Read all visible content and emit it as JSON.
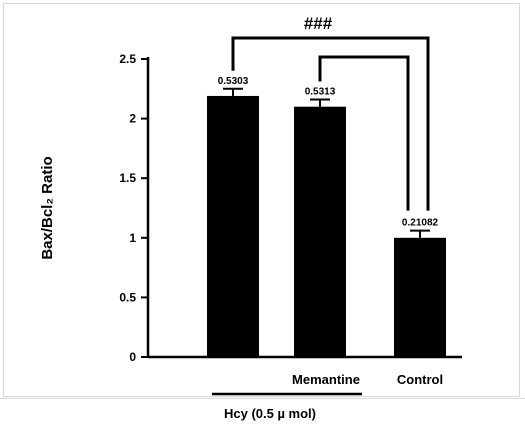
{
  "chart_data": {
    "type": "bar",
    "categories": [
      "",
      "Memantine",
      "Control"
    ],
    "values": [
      2.19,
      2.1,
      1.0
    ],
    "errors": [
      0.06,
      0.06,
      0.06
    ],
    "data_labels": [
      "0.5303",
      "0.5313",
      "0.21082"
    ],
    "ylabel": "Bax/Bcl₂ Ratio",
    "ylim": [
      0,
      2.5
    ],
    "yticks": [
      0,
      0.5,
      1,
      1.5,
      2,
      2.5
    ],
    "ytick_labels": [
      "0",
      "0.5",
      "1",
      "1.5",
      "2",
      "2.5"
    ],
    "grid": false,
    "bar_color": "#000000",
    "group_label": "Hcy (0.5 µ mol)",
    "significance": {
      "label": "###",
      "comparisons": [
        [
          0,
          2
        ],
        [
          1,
          2
        ]
      ]
    }
  }
}
